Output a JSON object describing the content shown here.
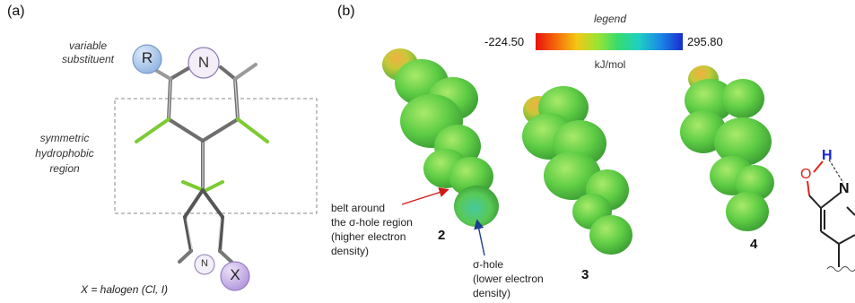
{
  "panel_a": {
    "label": "(a)",
    "annotations": {
      "variable_substituent": [
        "variable",
        "substituent"
      ],
      "symmetric_region": [
        "symmetric",
        "hydrophobic",
        "region"
      ],
      "halogen_note": "X = halogen (Cl, I)"
    },
    "atoms": {
      "r": "R",
      "n_top": "N",
      "n_bottom": "N",
      "x": "X"
    },
    "colors": {
      "r_node": "#a9c7ea",
      "n_node": "#f3eef8",
      "x_node": "#c7b2e6",
      "halogen_bond": "#7ccb32",
      "frame": "#8a8a8a"
    }
  },
  "panel_b": {
    "label": "(b)",
    "legend": {
      "title": "legend",
      "min": "-224.50",
      "max": "295.80",
      "unit": "kJ/mol",
      "gradient": [
        "#e8120c",
        "#f56a09",
        "#f2c814",
        "#9be432",
        "#36dc6e",
        "#1fd0c2",
        "#1a88e6",
        "#1a2bd0"
      ]
    },
    "annotations": {
      "belt": [
        "belt around",
        "the σ-hole region",
        "(higher electron",
        "density)"
      ],
      "sigma_hole": [
        "σ-hole",
        "(lower electron",
        "density)"
      ],
      "arrow_colors": {
        "belt": "#d01818",
        "sigma_hole": "#1e3f8c"
      }
    },
    "compounds": [
      "2",
      "3",
      "4"
    ],
    "partial_structure": {
      "o": "O",
      "h": "H",
      "n": "N",
      "o_color": "#e0241c",
      "h_color": "#1726d6",
      "n_color": "#111111"
    }
  }
}
